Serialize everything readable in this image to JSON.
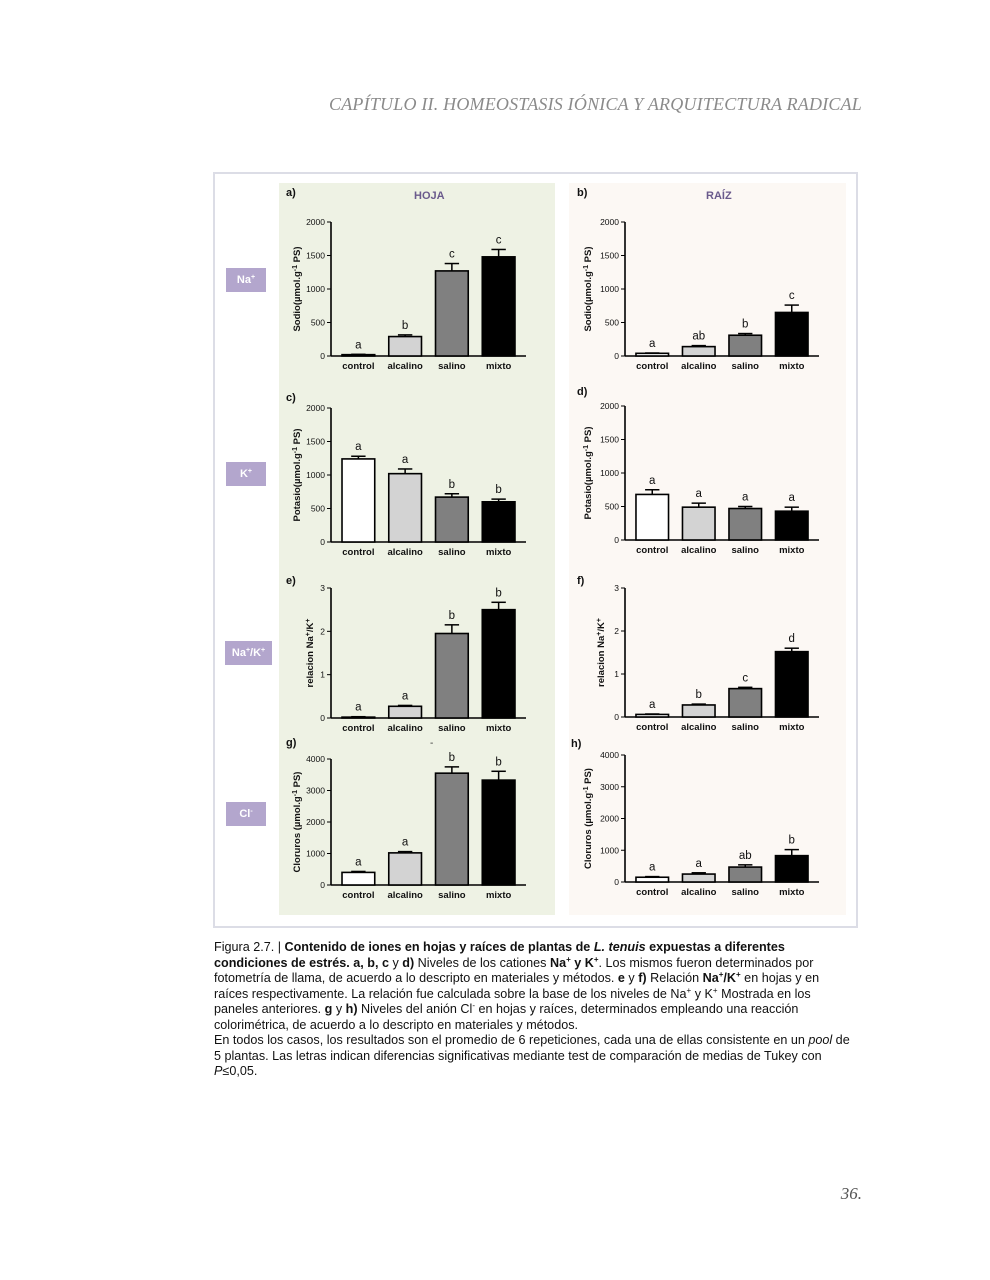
{
  "header": {
    "running_title": "CAPÍTULO II. HOMEOSTASIS IÓNICA Y ARQUITECTURA RADICAL"
  },
  "figure": {
    "column_headers": {
      "hoja": "HOJA",
      "raiz": "RAÍZ"
    },
    "ion_labels": {
      "na": "Na",
      "na_sup": "+",
      "k": "K",
      "k_sup": "+",
      "ratio_a": "Na",
      "ratio_a_sup": "+",
      "ratio_mid": "/K",
      "ratio_b_sup": "+",
      "cl": "Cl",
      "cl_sup": "-"
    },
    "stray_mark": "-"
  },
  "chart_data": [
    {
      "id": "a",
      "type": "bar",
      "panel_label": "a)",
      "ylabel": "Sodio(µmol.g-1 PS)",
      "ylim": [
        0,
        2000
      ],
      "yticks": [
        0,
        500,
        1000,
        1500,
        2000
      ],
      "categories": [
        "control",
        "alcalino",
        "salino",
        "mixto"
      ],
      "values": [
        20,
        290,
        1270,
        1480
      ],
      "errors": [
        5,
        25,
        110,
        110
      ],
      "letters": [
        "a",
        "b",
        "c",
        "c"
      ]
    },
    {
      "id": "b",
      "type": "bar",
      "panel_label": "b)",
      "ylabel": "Sodio(µmol.g-1 PS)",
      "ylim": [
        0,
        2000
      ],
      "yticks": [
        0,
        500,
        1000,
        1500,
        2000
      ],
      "categories": [
        "control",
        "alcalino",
        "salino",
        "mixto"
      ],
      "values": [
        40,
        140,
        310,
        650
      ],
      "errors": [
        5,
        15,
        25,
        110
      ],
      "letters": [
        "a",
        "ab",
        "b",
        "c"
      ]
    },
    {
      "id": "c",
      "type": "bar",
      "panel_label": "c)",
      "ylabel": "Potasio(µmol.g-1 PS)",
      "ylim": [
        0,
        2000
      ],
      "yticks": [
        0,
        500,
        1000,
        1500,
        2000
      ],
      "categories": [
        "control",
        "alcalino",
        "salino",
        "mixto"
      ],
      "values": [
        1240,
        1020,
        670,
        600
      ],
      "errors": [
        40,
        70,
        50,
        40
      ],
      "letters": [
        "a",
        "a",
        "b",
        "b"
      ]
    },
    {
      "id": "d",
      "type": "bar",
      "panel_label": "d)",
      "ylabel": "Potasio(µmol.g-1 PS)",
      "ylim": [
        0,
        2000
      ],
      "yticks": [
        0,
        500,
        1000,
        1500,
        2000
      ],
      "categories": [
        "control",
        "alcalino",
        "salino",
        "mixto"
      ],
      "values": [
        680,
        490,
        470,
        430
      ],
      "errors": [
        70,
        60,
        30,
        60
      ],
      "letters": [
        "a",
        "a",
        "a",
        "a"
      ]
    },
    {
      "id": "e",
      "type": "bar",
      "panel_label": "e)",
      "ylabel": "relacion Na+/K+",
      "ylim": [
        0,
        3
      ],
      "yticks": [
        0,
        1,
        2,
        3
      ],
      "categories": [
        "control",
        "alcalino",
        "salino",
        "mixto"
      ],
      "values": [
        0.02,
        0.27,
        1.95,
        2.5
      ],
      "errors": [
        0.01,
        0.02,
        0.2,
        0.17
      ],
      "letters": [
        "a",
        "a",
        "b",
        "b"
      ]
    },
    {
      "id": "f",
      "type": "bar",
      "panel_label": "f)",
      "ylabel": "relacion Na+/K+",
      "ylim": [
        0,
        3
      ],
      "yticks": [
        0,
        1,
        2,
        3
      ],
      "categories": [
        "control",
        "alcalino",
        "salino",
        "mixto"
      ],
      "values": [
        0.06,
        0.28,
        0.66,
        1.52
      ],
      "errors": [
        0.01,
        0.02,
        0.03,
        0.08
      ],
      "letters": [
        "a",
        "b",
        "c",
        "d"
      ]
    },
    {
      "id": "g",
      "type": "bar",
      "panel_label": "g)",
      "ylabel": "Cloruros (µmol.g-1 PS)",
      "ylim": [
        0,
        4000
      ],
      "yticks": [
        0,
        1000,
        2000,
        3000,
        4000
      ],
      "categories": [
        "control",
        "alcalino",
        "salino",
        "mixto"
      ],
      "values": [
        400,
        1020,
        3550,
        3330
      ],
      "errors": [
        30,
        40,
        200,
        280
      ],
      "letters": [
        "a",
        "a",
        "b",
        "b"
      ]
    },
    {
      "id": "h",
      "type": "bar",
      "panel_label": "h)",
      "ylabel": "Cloruros (µmol.g-1 PS)",
      "ylim": [
        0,
        4000
      ],
      "yticks": [
        0,
        1000,
        2000,
        3000,
        4000
      ],
      "categories": [
        "control",
        "alcalino",
        "salino",
        "mixto"
      ],
      "values": [
        150,
        250,
        470,
        830
      ],
      "errors": [
        20,
        40,
        70,
        190
      ],
      "letters": [
        "a",
        "a",
        "ab",
        "b"
      ]
    }
  ],
  "series_colors": [
    "#ffffff",
    "#d3d3d3",
    "#808080",
    "#000000"
  ],
  "caption": {
    "fig_num": "Figura 2.7. | ",
    "b_title": "Contenido de iones en hojas y raíces de plantas de ",
    "i_species": "L. tenuis",
    "b_title2": " expuestas a diferentes condiciones de estrés. a, b, c",
    "y1": " y ",
    "b_d": "d)",
    "t1": " Niveles de los cationes ",
    "b_na": "Na",
    "b_y_k": " y K",
    "t2": ". Los mismos fueron determinados por fotometría de llama, de acuerdo a lo descripto en materiales y métodos. ",
    "b_e": "e",
    "y2": " y ",
    "b_f": "f)",
    "t3": " Relación ",
    "b_ratio": "Na",
    "b_ratio2": "/K",
    "t4": " en hojas y en raíces respectivamente. La relación fue calculada sobre la base de los niveles de Na",
    "t5": " y K",
    "t6": " Mostrada en los paneles anteriores. ",
    "b_g": "g",
    "y3": " y ",
    "b_h": "h)",
    "t7": " Niveles del anión Cl",
    "t8": " en hojas y raíces, determinados empleando una reacción colorimétrica, de acuerdo a lo descripto en materiales y métodos.",
    "p2a": "En todos los casos, los resultados son el promedio de 6 repeticiones, cada una de ellas consistente en un ",
    "p2_pool": "pool",
    "p2b": " de 5 plantas. Las letras indican diferencias significativas mediante test de comparación de medias de Tukey con ",
    "p2_p": "P",
    "p2c": "≤0,05.",
    "sup_plus": "+",
    "sup_minus": "-"
  },
  "page_number": "36."
}
